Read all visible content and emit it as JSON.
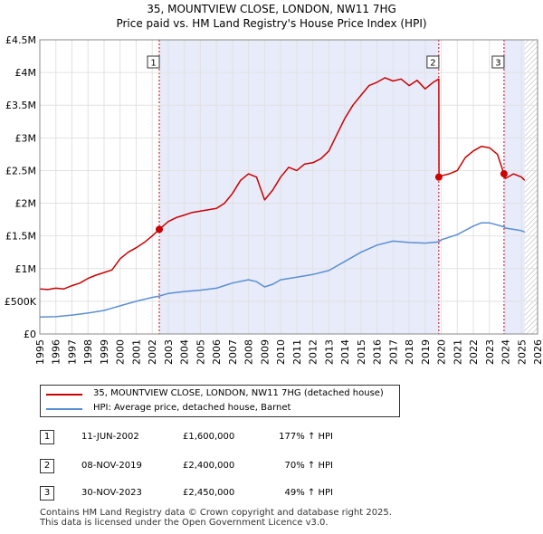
{
  "header": {
    "title_line1": "35, MOUNTVIEW CLOSE, LONDON, NW11 7HG",
    "title_line2": "Price paid vs. HM Land Registry's House Price Index (HPI)"
  },
  "colors": {
    "property_line": "#cc0000",
    "hpi_line": "#5b8fd1",
    "shade": "#e7ebfa",
    "hatch": "#b0b0b0",
    "marker_line": "#cc0000"
  },
  "chart_data": {
    "type": "line",
    "title": "Price paid vs. HM Land Registry's House Price Index (HPI)",
    "xlabel": "",
    "ylabel": "",
    "xlim": [
      1995,
      2026
    ],
    "ylim": [
      0,
      4500000
    ],
    "x_ticks": [
      1995,
      1996,
      1997,
      1998,
      1999,
      2000,
      2001,
      2002,
      2003,
      2004,
      2005,
      2006,
      2007,
      2008,
      2009,
      2010,
      2011,
      2012,
      2013,
      2014,
      2015,
      2016,
      2017,
      2018,
      2019,
      2020,
      2021,
      2022,
      2023,
      2024,
      2025,
      2026
    ],
    "y_ticks": [
      {
        "value": 0,
        "label": "£0"
      },
      {
        "value": 500000,
        "label": "£500K"
      },
      {
        "value": 1000000,
        "label": "£1M"
      },
      {
        "value": 1500000,
        "label": "£1.5M"
      },
      {
        "value": 2000000,
        "label": "£2M"
      },
      {
        "value": 2500000,
        "label": "£2.5M"
      },
      {
        "value": 3000000,
        "label": "£3M"
      },
      {
        "value": 3500000,
        "label": "£3.5M"
      },
      {
        "value": 4000000,
        "label": "£4M"
      },
      {
        "value": 4500000,
        "label": "£4.5M"
      }
    ],
    "grid": true,
    "legend_position": "below",
    "series": [
      {
        "name": "35, MOUNTVIEW CLOSE, LONDON, NW11 7HG (detached house)",
        "color": "#cc0000",
        "points": [
          [
            1995,
            690000
          ],
          [
            1995.5,
            680000
          ],
          [
            1996,
            700000
          ],
          [
            1996.5,
            690000
          ],
          [
            1997,
            740000
          ],
          [
            1997.5,
            780000
          ],
          [
            1998,
            850000
          ],
          [
            1998.5,
            900000
          ],
          [
            1999,
            940000
          ],
          [
            1999.5,
            980000
          ],
          [
            2000,
            1150000
          ],
          [
            2000.5,
            1250000
          ],
          [
            2001,
            1320000
          ],
          [
            2001.5,
            1400000
          ],
          [
            2002,
            1500000
          ],
          [
            2002.44,
            1600000
          ],
          [
            2003,
            1720000
          ],
          [
            2003.5,
            1780000
          ],
          [
            2004,
            1820000
          ],
          [
            2004.5,
            1860000
          ],
          [
            2005,
            1880000
          ],
          [
            2005.5,
            1900000
          ],
          [
            2006,
            1920000
          ],
          [
            2006.5,
            2000000
          ],
          [
            2007,
            2150000
          ],
          [
            2007.5,
            2350000
          ],
          [
            2008,
            2450000
          ],
          [
            2008.5,
            2400000
          ],
          [
            2009,
            2050000
          ],
          [
            2009.5,
            2200000
          ],
          [
            2010,
            2400000
          ],
          [
            2010.5,
            2550000
          ],
          [
            2011,
            2500000
          ],
          [
            2011.5,
            2600000
          ],
          [
            2012,
            2620000
          ],
          [
            2012.5,
            2680000
          ],
          [
            2013,
            2800000
          ],
          [
            2013.5,
            3050000
          ],
          [
            2014,
            3300000
          ],
          [
            2014.5,
            3500000
          ],
          [
            2015,
            3650000
          ],
          [
            2015.5,
            3800000
          ],
          [
            2016,
            3850000
          ],
          [
            2016.5,
            3920000
          ],
          [
            2017,
            3870000
          ],
          [
            2017.5,
            3900000
          ],
          [
            2018,
            3800000
          ],
          [
            2018.5,
            3880000
          ],
          [
            2019,
            3750000
          ],
          [
            2019.5,
            3850000
          ],
          [
            2019.85,
            3900000
          ],
          [
            2019.86,
            2400000
          ],
          [
            2020,
            2420000
          ],
          [
            2020.5,
            2450000
          ],
          [
            2021,
            2500000
          ],
          [
            2021.5,
            2700000
          ],
          [
            2022,
            2800000
          ],
          [
            2022.5,
            2870000
          ],
          [
            2023,
            2850000
          ],
          [
            2023.5,
            2750000
          ],
          [
            2023.91,
            2450000
          ],
          [
            2024,
            2380000
          ],
          [
            2024.5,
            2450000
          ],
          [
            2025,
            2400000
          ],
          [
            2025.2,
            2350000
          ]
        ]
      },
      {
        "name": "HPI: Average price, detached house, Barnet",
        "color": "#5b8fd1",
        "points": [
          [
            1995,
            260000
          ],
          [
            1996,
            265000
          ],
          [
            1997,
            290000
          ],
          [
            1998,
            320000
          ],
          [
            1999,
            360000
          ],
          [
            2000,
            430000
          ],
          [
            2001,
            500000
          ],
          [
            2002,
            560000
          ],
          [
            2002.44,
            580000
          ],
          [
            2003,
            620000
          ],
          [
            2004,
            650000
          ],
          [
            2005,
            670000
          ],
          [
            2006,
            700000
          ],
          [
            2007,
            780000
          ],
          [
            2008,
            830000
          ],
          [
            2008.5,
            800000
          ],
          [
            2009,
            720000
          ],
          [
            2009.5,
            760000
          ],
          [
            2010,
            830000
          ],
          [
            2011,
            870000
          ],
          [
            2012,
            910000
          ],
          [
            2013,
            970000
          ],
          [
            2014,
            1110000
          ],
          [
            2015,
            1250000
          ],
          [
            2016,
            1360000
          ],
          [
            2017,
            1420000
          ],
          [
            2018,
            1400000
          ],
          [
            2019,
            1390000
          ],
          [
            2019.85,
            1410000
          ],
          [
            2020,
            1440000
          ],
          [
            2021,
            1520000
          ],
          [
            2022,
            1650000
          ],
          [
            2022.5,
            1700000
          ],
          [
            2023,
            1700000
          ],
          [
            2023.91,
            1640000
          ],
          [
            2024,
            1620000
          ],
          [
            2024.5,
            1600000
          ],
          [
            2025,
            1580000
          ],
          [
            2025.2,
            1560000
          ]
        ]
      }
    ],
    "sales": [
      {
        "label": "1",
        "date": "11-JUN-2002",
        "price": "£1,600,000",
        "hpi": "177% ↑ HPI",
        "x": 2002.44,
        "value": 1600000
      },
      {
        "label": "2",
        "date": "08-NOV-2019",
        "price": "£2,400,000",
        "hpi": "70% ↑ HPI",
        "x": 2019.85,
        "value": 2400000
      },
      {
        "label": "3",
        "date": "30-NOV-2023",
        "price": "£2,450,000",
        "hpi": "49% ↑ HPI",
        "x": 2023.91,
        "value": 2450000
      }
    ],
    "future_from": 2025.2
  },
  "legend": {
    "property": "35, MOUNTVIEW CLOSE, LONDON, NW11 7HG (detached house)",
    "hpi": "HPI: Average price, detached house, Barnet"
  },
  "footer": {
    "line1": "Contains HM Land Registry data © Crown copyright and database right 2025.",
    "line2": "This data is licensed under the Open Government Licence v3.0."
  }
}
